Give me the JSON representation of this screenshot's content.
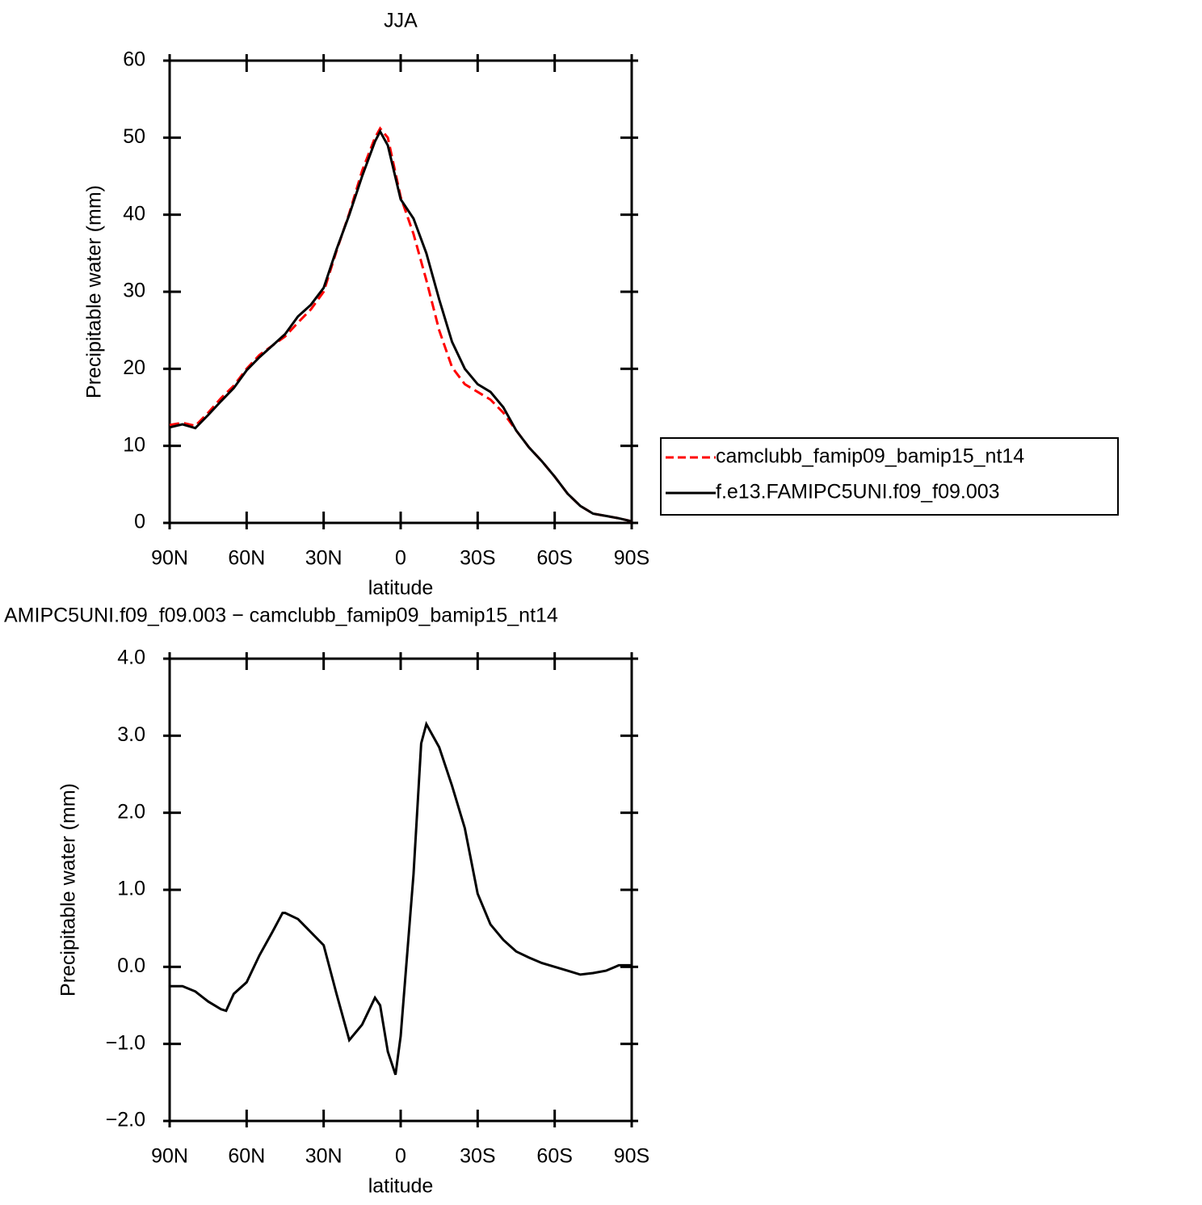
{
  "chart_data": [
    {
      "type": "line",
      "title": "JJA",
      "xlabel": "latitude",
      "ylabel": "Precipitable water (mm)",
      "x": [
        90,
        85,
        80,
        75,
        70,
        65,
        60,
        55,
        50,
        45,
        40,
        35,
        30,
        25,
        20,
        15,
        10,
        8,
        5,
        0,
        -5,
        -10,
        -15,
        -20,
        -25,
        -30,
        -35,
        -40,
        -45,
        -50,
        -55,
        -60,
        -65,
        -70,
        -75,
        -80,
        -85,
        -90
      ],
      "series": [
        {
          "name": "camclubb_famip09_bamip15_nt14",
          "color": "#ff0000",
          "linestyle": "dashed",
          "values": [
            12.7,
            13,
            12.6,
            14.3,
            16.2,
            17.8,
            20,
            21.8,
            23,
            24.2,
            26,
            27.7,
            30,
            35.3,
            40.2,
            45.7,
            50,
            51.2,
            50,
            42.3,
            37.5,
            31.5,
            25,
            20.2,
            18,
            17,
            16,
            14.3,
            12,
            9.8,
            8,
            6,
            3.8,
            2.2,
            1.2,
            0.9,
            0.6,
            0.2
          ]
        },
        {
          "name": "f.e13.FAMIPC5UNI.f09_f09.003",
          "color": "#000000",
          "linestyle": "solid",
          "values": [
            12.4,
            12.8,
            12.3,
            14,
            15.8,
            17.5,
            19.8,
            21.5,
            23,
            24.5,
            26.8,
            28.3,
            30.5,
            35.5,
            40,
            45,
            49.5,
            50.8,
            49,
            42,
            39.5,
            35,
            29,
            23.5,
            20,
            18,
            17,
            15,
            12,
            9.8,
            8,
            6,
            3.8,
            2.2,
            1.2,
            0.9,
            0.6,
            0.2
          ]
        }
      ],
      "xlim": [
        90,
        -90
      ],
      "xticks": [
        {
          "value": 90,
          "label": "90N"
        },
        {
          "value": 60,
          "label": "60N"
        },
        {
          "value": 30,
          "label": "30N"
        },
        0,
        {
          "value": -30,
          "label": "30S"
        },
        {
          "value": -60,
          "label": "60S"
        },
        {
          "value": -90,
          "label": "90S"
        }
      ],
      "ylim": [
        0,
        60
      ],
      "yticks": [
        0,
        10,
        20,
        30,
        40,
        50,
        60
      ],
      "legend": "right"
    },
    {
      "type": "line",
      "title": "AMIPC5UNI.f09_f09.003 − camclubb_famip09_bamip15_nt14",
      "xlabel": "latitude",
      "ylabel": "Precipitable water (mm)",
      "x": [
        90,
        85,
        80,
        75,
        70,
        68,
        65,
        60,
        55,
        50,
        46,
        45,
        40,
        35,
        30,
        25,
        20,
        15,
        10,
        8,
        5,
        2,
        0,
        -5,
        -8,
        -10,
        -15,
        -20,
        -25,
        -30,
        -35,
        -40,
        -45,
        -50,
        -55,
        -60,
        -65,
        -70,
        -75,
        -80,
        -85,
        -90
      ],
      "series": [
        {
          "color": "#000000",
          "linestyle": "solid",
          "values": [
            -0.25,
            -0.25,
            -0.32,
            -0.45,
            -0.55,
            -0.57,
            -0.35,
            -0.2,
            0.15,
            0.45,
            0.7,
            0.7,
            0.62,
            0.45,
            0.28,
            -0.35,
            -0.95,
            -0.75,
            -0.4,
            -0.5,
            -1.1,
            -1.4,
            -0.9,
            1.2,
            2.9,
            3.15,
            2.85,
            2.35,
            1.8,
            0.95,
            0.55,
            0.35,
            0.2,
            0.12,
            0.05,
            0,
            -0.05,
            -0.1,
            -0.08,
            -0.05,
            0.02,
            0.02
          ]
        }
      ],
      "xlim": [
        90,
        -90
      ],
      "xticks": [
        {
          "value": 90,
          "label": "90N"
        },
        {
          "value": 60,
          "label": "60N"
        },
        {
          "value": 30,
          "label": "30N"
        },
        0,
        {
          "value": -30,
          "label": "30S"
        },
        {
          "value": -60,
          "label": "60S"
        },
        {
          "value": -90,
          "label": "90S"
        }
      ],
      "ylim": [
        -2,
        4
      ],
      "yticks": [
        {
          "value": -2,
          "label": "−2.0"
        },
        {
          "value": -1,
          "label": "−1.0"
        },
        {
          "value": 0,
          "label": "0.0"
        },
        {
          "value": 1,
          "label": "1.0"
        },
        {
          "value": 2,
          "label": "2.0"
        },
        {
          "value": 3,
          "label": "3.0"
        },
        {
          "value": 4,
          "label": "4.0"
        }
      ]
    }
  ]
}
